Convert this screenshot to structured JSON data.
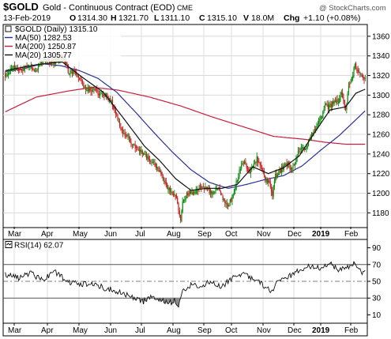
{
  "chart_data": {
    "type": "candlestick",
    "symbol": "$GOLD",
    "title": "Gold - Continuous Contract (EOD)",
    "exchange": "CME",
    "watermark": "@ StockCharts.com",
    "quote": {
      "date": "13-Feb-2019",
      "open_label": "O",
      "open": "1314.30",
      "high_label": "H",
      "high": "1321.70",
      "low_label": "L",
      "low": "1311.10",
      "close_label": "C",
      "close": "1315.10",
      "volume_label": "V",
      "volume": "18.0M",
      "change_label": "Chg",
      "change": "+1.10 (+0.08%)"
    },
    "legend": [
      {
        "label": "$GOLD (Daily) 1315.10",
        "color": "#000000",
        "kind": "price"
      },
      {
        "label": "MA(50) 1282.53",
        "color": "#2a2f9e",
        "kind": "ma50"
      },
      {
        "label": "MA(200) 1250.87",
        "color": "#c81e3c",
        "kind": "ma200"
      },
      {
        "label": "MA(20) 1305.77",
        "color": "#111111",
        "kind": "ma20"
      }
    ],
    "y_axis": {
      "min": 1165,
      "max": 1372,
      "ticks": [
        1180,
        1200,
        1220,
        1240,
        1260,
        1280,
        1300,
        1320,
        1340,
        1360
      ]
    },
    "x_axis_labels": [
      {
        "label": "Mar",
        "bold": false
      },
      {
        "label": "Apr",
        "bold": false
      },
      {
        "label": "May",
        "bold": false
      },
      {
        "label": "Jun",
        "bold": false
      },
      {
        "label": "Jul",
        "bold": false
      },
      {
        "label": "Aug",
        "bold": false
      },
      {
        "label": "Sep",
        "bold": false
      },
      {
        "label": "Oct",
        "bold": false
      },
      {
        "label": "Nov",
        "bold": false
      },
      {
        "label": "Dec",
        "bold": false
      },
      {
        "label": "2019",
        "bold": true
      },
      {
        "label": "Feb",
        "bold": false
      }
    ],
    "price_anchors": [
      [
        0,
        1321
      ],
      [
        8,
        1328
      ],
      [
        15,
        1325
      ],
      [
        22,
        1330
      ],
      [
        30,
        1326
      ],
      [
        38,
        1336
      ],
      [
        45,
        1333
      ],
      [
        52,
        1337
      ],
      [
        58,
        1334
      ],
      [
        62,
        1322
      ],
      [
        66,
        1324
      ],
      [
        72,
        1318
      ],
      [
        76,
        1310
      ],
      [
        80,
        1305
      ],
      [
        86,
        1306
      ],
      [
        92,
        1300
      ],
      [
        98,
        1302
      ],
      [
        102,
        1296
      ],
      [
        106,
        1285
      ],
      [
        110,
        1272
      ],
      [
        114,
        1262
      ],
      [
        118,
        1258
      ],
      [
        122,
        1252
      ],
      [
        126,
        1247
      ],
      [
        130,
        1245
      ],
      [
        134,
        1239
      ],
      [
        138,
        1236
      ],
      [
        142,
        1232
      ],
      [
        146,
        1228
      ],
      [
        150,
        1222
      ],
      [
        153,
        1213
      ],
      [
        156,
        1207
      ],
      [
        160,
        1204
      ],
      [
        163,
        1199
      ],
      [
        166,
        1194
      ],
      [
        168,
        1182
      ],
      [
        170,
        1174
      ],
      [
        172,
        1193
      ],
      [
        176,
        1198
      ],
      [
        180,
        1202
      ],
      [
        184,
        1200
      ],
      [
        188,
        1206
      ],
      [
        192,
        1205
      ],
      [
        196,
        1204
      ],
      [
        200,
        1200
      ],
      [
        204,
        1205
      ],
      [
        208,
        1202
      ],
      [
        212,
        1193
      ],
      [
        216,
        1188
      ],
      [
        220,
        1195
      ],
      [
        224,
        1210
      ],
      [
        228,
        1225
      ],
      [
        232,
        1232
      ],
      [
        236,
        1222
      ],
      [
        240,
        1226
      ],
      [
        244,
        1235
      ],
      [
        248,
        1228
      ],
      [
        252,
        1215
      ],
      [
        256,
        1210
      ],
      [
        259,
        1200
      ],
      [
        262,
        1218
      ],
      [
        266,
        1222
      ],
      [
        270,
        1227
      ],
      [
        274,
        1230
      ],
      [
        278,
        1224
      ],
      [
        282,
        1236
      ],
      [
        286,
        1246
      ],
      [
        290,
        1244
      ],
      [
        294,
        1252
      ],
      [
        298,
        1262
      ],
      [
        302,
        1270
      ],
      [
        306,
        1277
      ],
      [
        310,
        1290
      ],
      [
        314,
        1288
      ],
      [
        318,
        1292
      ],
      [
        322,
        1293
      ],
      [
        326,
        1302
      ],
      [
        330,
        1285
      ],
      [
        333,
        1308
      ],
      [
        336,
        1318
      ],
      [
        339,
        1330
      ],
      [
        342,
        1323
      ],
      [
        346,
        1319
      ],
      [
        349,
        1316
      ]
    ],
    "ma50": [
      [
        0,
        1324
      ],
      [
        18,
        1327
      ],
      [
        36,
        1332
      ],
      [
        54,
        1330
      ],
      [
        72,
        1325
      ],
      [
        90,
        1317
      ],
      [
        108,
        1303
      ],
      [
        126,
        1283
      ],
      [
        144,
        1262
      ],
      [
        162,
        1242
      ],
      [
        180,
        1224
      ],
      [
        198,
        1211
      ],
      [
        216,
        1205
      ],
      [
        234,
        1209
      ],
      [
        252,
        1214
      ],
      [
        270,
        1218
      ],
      [
        288,
        1228
      ],
      [
        306,
        1244
      ],
      [
        324,
        1259
      ],
      [
        342,
        1277
      ],
      [
        349,
        1284
      ]
    ],
    "ma200": [
      [
        0,
        1283
      ],
      [
        30,
        1298
      ],
      [
        60,
        1304
      ],
      [
        85,
        1308
      ],
      [
        110,
        1305
      ],
      [
        140,
        1298
      ],
      [
        170,
        1289
      ],
      [
        200,
        1278
      ],
      [
        230,
        1268
      ],
      [
        260,
        1258
      ],
      [
        290,
        1255
      ],
      [
        310,
        1252
      ],
      [
        330,
        1250
      ],
      [
        349,
        1250
      ]
    ],
    "ma20": [
      [
        0,
        1325
      ],
      [
        30,
        1331
      ],
      [
        55,
        1334
      ],
      [
        75,
        1318
      ],
      [
        95,
        1303
      ],
      [
        115,
        1276
      ],
      [
        135,
        1248
      ],
      [
        150,
        1233
      ],
      [
        165,
        1215
      ],
      [
        180,
        1203
      ],
      [
        195,
        1205
      ],
      [
        210,
        1205
      ],
      [
        225,
        1209
      ],
      [
        240,
        1227
      ],
      [
        255,
        1220
      ],
      [
        270,
        1226
      ],
      [
        285,
        1238
      ],
      [
        300,
        1262
      ],
      [
        315,
        1285
      ],
      [
        330,
        1288
      ],
      [
        340,
        1302
      ],
      [
        349,
        1306
      ]
    ],
    "rsi": {
      "label": "RSI(14) 62.07",
      "min": 0,
      "max": 100,
      "ticks": [
        10,
        30,
        50,
        70,
        90
      ],
      "overbought": 70,
      "oversold": 30,
      "anchors": [
        [
          0,
          58
        ],
        [
          12,
          54
        ],
        [
          24,
          60
        ],
        [
          36,
          52
        ],
        [
          48,
          62
        ],
        [
          60,
          50
        ],
        [
          72,
          46
        ],
        [
          84,
          48
        ],
        [
          96,
          42
        ],
        [
          108,
          38
        ],
        [
          118,
          34
        ],
        [
          126,
          30
        ],
        [
          134,
          26
        ],
        [
          142,
          34
        ],
        [
          150,
          28
        ],
        [
          158,
          24
        ],
        [
          164,
          27
        ],
        [
          168,
          22
        ],
        [
          172,
          40
        ],
        [
          180,
          46
        ],
        [
          190,
          44
        ],
        [
          200,
          50
        ],
        [
          210,
          43
        ],
        [
          220,
          54
        ],
        [
          230,
          60
        ],
        [
          240,
          52
        ],
        [
          250,
          46
        ],
        [
          258,
          38
        ],
        [
          266,
          52
        ],
        [
          276,
          56
        ],
        [
          286,
          64
        ],
        [
          296,
          68
        ],
        [
          306,
          66
        ],
        [
          316,
          70
        ],
        [
          324,
          64
        ],
        [
          332,
          66
        ],
        [
          338,
          72
        ],
        [
          342,
          64
        ],
        [
          346,
          60
        ],
        [
          349,
          62
        ]
      ]
    }
  }
}
